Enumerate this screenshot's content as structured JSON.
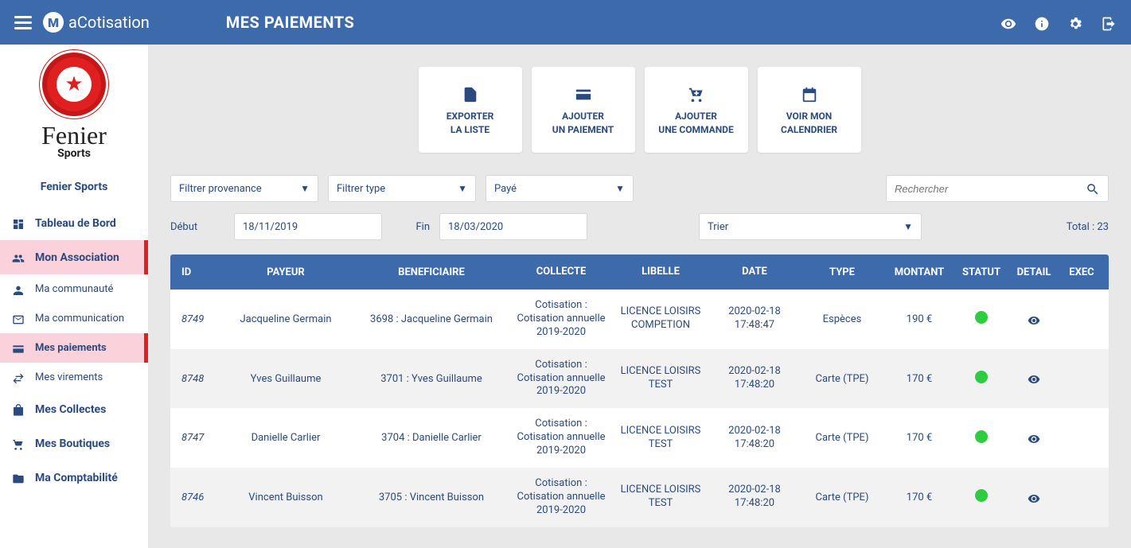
{
  "colors": {
    "primary": "#3c6aab",
    "accent": "#e02020",
    "activeBg": "#fbd2db",
    "statusGreen": "#2ecc40"
  },
  "header": {
    "brand_prefix": "a",
    "brand_main": "Cotisation",
    "page_title": "MES PAIEMENTS"
  },
  "org": {
    "name_line1": "Fenier",
    "name_line2": "Sports",
    "full_name": "Fenier Sports"
  },
  "sidebar": {
    "dashboard": "Tableau de Bord",
    "association": "Mon Association",
    "community": "Ma communauté",
    "communication": "Ma communication",
    "payments": "Mes paiements",
    "transfers": "Mes virements",
    "collections": "Mes Collectes",
    "shops": "Mes Boutiques",
    "accounting": "Ma Comptabilité"
  },
  "actions": {
    "export": "EXPORTER\nLA LISTE",
    "add_payment": "AJOUTER\nUN PAIEMENT",
    "add_order": "AJOUTER\nUNE COMMANDE",
    "calendar": "VOIR MON\nCALENDRIER"
  },
  "filters": {
    "provenance": "Filtrer provenance",
    "type": "Filtrer type",
    "status": "Payé",
    "search_placeholder": "Rechercher",
    "debut_label": "Début",
    "debut_value": "18/11/2019",
    "fin_label": "Fin",
    "fin_value": "18/03/2020",
    "sort": "Trier",
    "total": "Total : 23"
  },
  "table": {
    "headers": {
      "id": "ID",
      "payer": "PAYEUR",
      "benef": "BENEFICIAIRE",
      "collecte": "COLLECTE",
      "libelle": "LIBELLE",
      "date": "DATE",
      "type": "TYPE",
      "montant": "MONTANT",
      "statut": "STATUT",
      "detail": "DETAIL",
      "exec": "EXEC"
    },
    "rows": [
      {
        "id": "8749",
        "payer": "Jacqueline  Germain",
        "benef": "3698 : Jacqueline  Germain",
        "collecte": "Cotisation : Cotisation annuelle 2019-2020",
        "libelle": "LICENCE LOISIRS COMPETION",
        "date": "2020-02-18 17:48:47",
        "type": "Espèces",
        "montant": "190 €",
        "status_color": "#2ecc40"
      },
      {
        "id": "8748",
        "payer": "Yves  Guillaume",
        "benef": "3701 : Yves  Guillaume",
        "collecte": "Cotisation : Cotisation annuelle 2019-2020",
        "libelle": "LICENCE LOISIRS TEST",
        "date": "2020-02-18 17:48:20",
        "type": "Carte (TPE)",
        "montant": "170 €",
        "status_color": "#2ecc40"
      },
      {
        "id": "8747",
        "payer": "Danielle  Carlier",
        "benef": "3704 : Danielle  Carlier",
        "collecte": "Cotisation : Cotisation annuelle 2019-2020",
        "libelle": "LICENCE LOISIRS TEST",
        "date": "2020-02-18 17:48:20",
        "type": "Carte (TPE)",
        "montant": "170 €",
        "status_color": "#2ecc40"
      },
      {
        "id": "8746",
        "payer": "Vincent  Buisson",
        "benef": "3705 : Vincent  Buisson",
        "collecte": "Cotisation : Cotisation annuelle 2019-2020",
        "libelle": "LICENCE LOISIRS TEST",
        "date": "2020-02-18 17:48:20",
        "type": "Carte (TPE)",
        "montant": "170 €",
        "status_color": "#2ecc40"
      }
    ]
  }
}
